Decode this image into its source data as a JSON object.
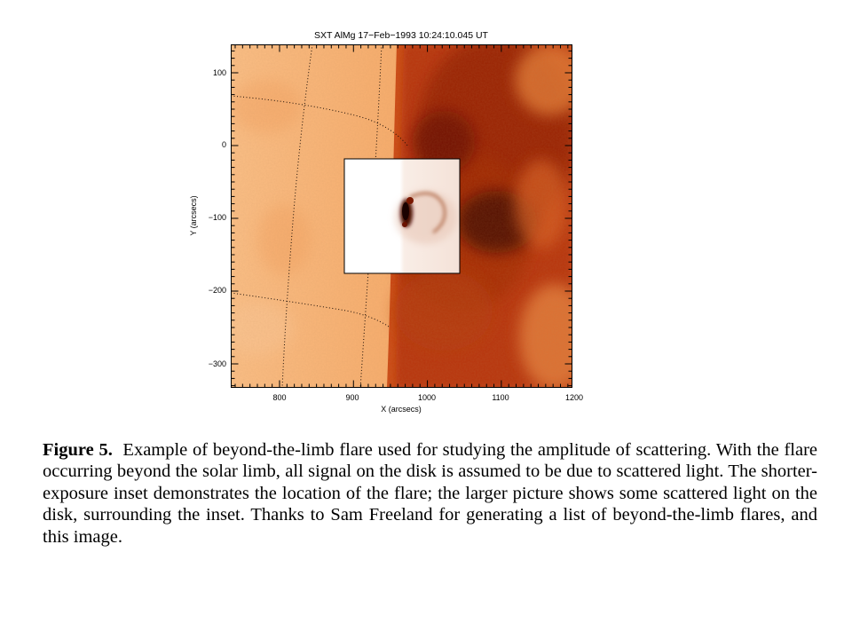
{
  "figure": {
    "plot_title": "SXT AlMg 17−Feb−1993 10:24:10.045 UT",
    "xlabel": "X (arcsecs)",
    "ylabel": "Y (arcsecs)",
    "x_ticks": [
      "800",
      "900",
      "1000",
      "1100",
      "1200"
    ],
    "y_ticks": [
      "100",
      "0",
      "−100",
      "−200",
      "−300"
    ],
    "colors": {
      "disk": "#f7a868",
      "corona_dark": "#7a1200",
      "inset_background": "#ffffff",
      "flare": "#2a0500"
    }
  },
  "caption": {
    "label": "Figure 5.",
    "text": "Example of beyond-the-limb flare used for studying the amplitude of scattering.  With the flare occurring beyond the solar limb, all signal on the disk is assumed to be due to scattered light.  The shorter-exposure inset demonstrates the location of the flare; the larger picture shows some scattered light on the disk, surrounding the inset.  Thanks to Sam Freeland for generating a list of beyond-the-limb flares, and this image."
  }
}
